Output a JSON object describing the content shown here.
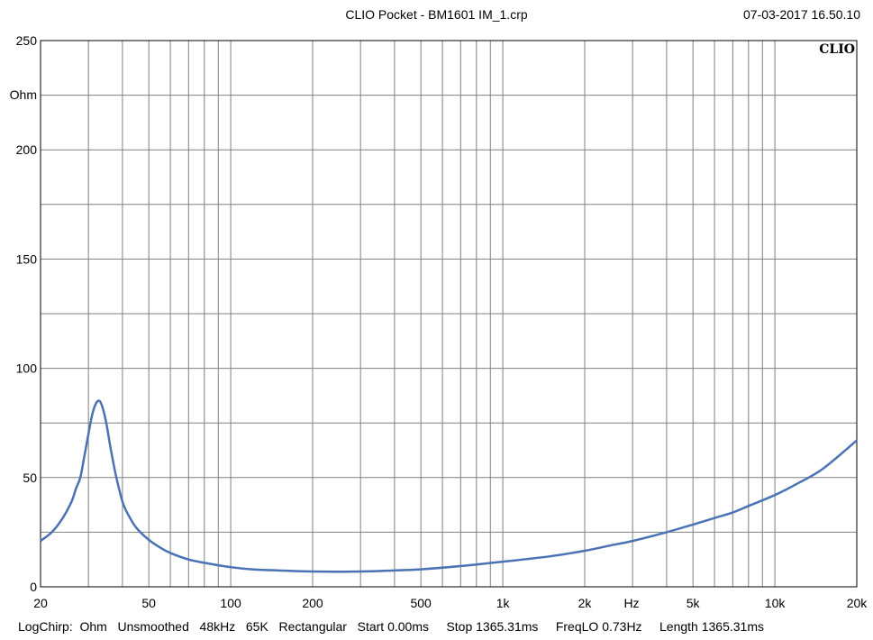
{
  "header": {
    "title": "CLIO Pocket - BM1601 IM_1.crp",
    "datetime": "07-03-2017 16.50.10"
  },
  "logo_text": "CLIO",
  "footer": {
    "text": "LogChirp:  Ohm   Unsmoothed   48kHz   65K   Rectangular   Start 0.00ms     Stop 1365.31ms     FreqLO 0.73Hz     Length 1365.31ms"
  },
  "colors": {
    "trace": "#4a72b4",
    "grid": "#808080",
    "background": "#ffffff"
  },
  "chart_data": {
    "type": "line",
    "title": "CLIO Pocket - BM1601 IM_1.crp",
    "xlabel": "Hz",
    "ylabel": "Ohm",
    "x_scale": "log",
    "xlim": [
      20,
      20000
    ],
    "ylim": [
      0,
      250
    ],
    "grid": true,
    "x_ticks": [
      {
        "value": 20,
        "label": "20"
      },
      {
        "value": 50,
        "label": "50"
      },
      {
        "value": 100,
        "label": "100"
      },
      {
        "value": 200,
        "label": "200"
      },
      {
        "value": 500,
        "label": "500"
      },
      {
        "value": 1000,
        "label": "1k"
      },
      {
        "value": 2000,
        "label": "2k"
      },
      {
        "value": 5000,
        "label": "5k"
      },
      {
        "value": 10000,
        "label": "10k"
      },
      {
        "value": 20000,
        "label": "20k"
      }
    ],
    "y_ticks": [
      {
        "value": 0,
        "label": "0"
      },
      {
        "value": 50,
        "label": "50"
      },
      {
        "value": 100,
        "label": "100"
      },
      {
        "value": 150,
        "label": "150"
      },
      {
        "value": 200,
        "label": "200"
      },
      {
        "value": 250,
        "label": "250"
      }
    ],
    "series": [
      {
        "x": [
          20,
          22,
          24,
          26,
          27,
          28,
          29,
          30,
          31,
          32,
          33,
          34,
          35,
          36,
          37,
          38,
          40,
          42,
          45,
          50,
          55,
          60,
          70,
          80,
          100,
          120,
          150,
          200,
          300,
          400,
          500,
          700,
          1000,
          1500,
          2000,
          2500,
          3000,
          4000,
          5000,
          6000,
          7000,
          8000,
          10000,
          12000,
          15000,
          20000
        ],
        "y": [
          21,
          25,
          31,
          39,
          45,
          50,
          60,
          70,
          79,
          84,
          85,
          81,
          74,
          65,
          57,
          50,
          39,
          33,
          27,
          21.5,
          18,
          15.5,
          12.5,
          11,
          9,
          8,
          7.5,
          7,
          7,
          7.5,
          8,
          9.5,
          11.5,
          14,
          16.5,
          19,
          21,
          25,
          28.5,
          31.5,
          34,
          37,
          42,
          47,
          54,
          67
        ]
      }
    ]
  }
}
